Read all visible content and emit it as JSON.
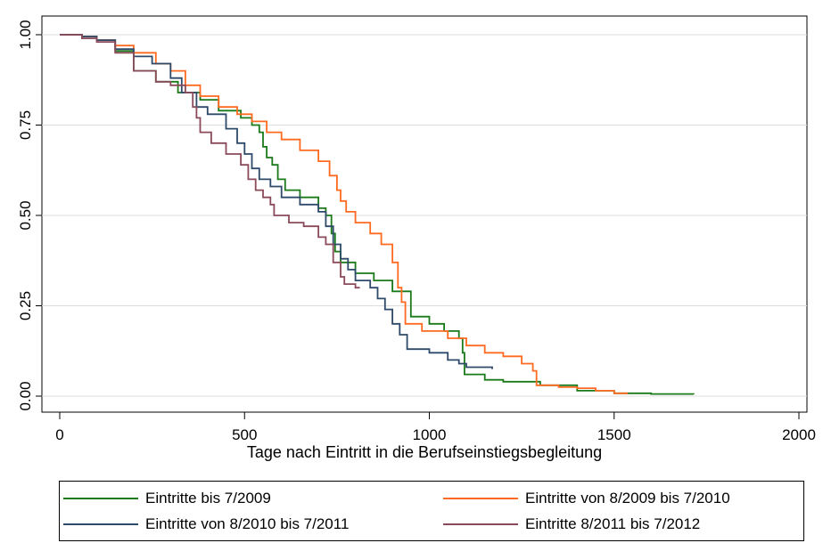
{
  "chart_data": {
    "type": "line",
    "title": "",
    "xlabel": "Tage nach Eintritt in die Berufseinstiegsbegleitung",
    "ylabel": "",
    "xlim": [
      0,
      2000
    ],
    "ylim": [
      0,
      1
    ],
    "xticks": [
      0,
      500,
      1000,
      1500,
      2000
    ],
    "xtick_labels": [
      "0",
      "500",
      "1000",
      "1500",
      "2000"
    ],
    "yticks": [
      0,
      0.25,
      0.5,
      0.75,
      1
    ],
    "ytick_labels": [
      "0.00",
      "0.25",
      "0.50",
      "0.75",
      "1.00"
    ],
    "grid": "horizontal",
    "legend_position": "bottom",
    "series": [
      {
        "name": "Eintritte bis 7/2009",
        "color": "#1a7a1a",
        "points": [
          [
            0,
            1.0
          ],
          [
            60,
            0.995
          ],
          [
            100,
            0.985
          ],
          [
            150,
            0.955
          ],
          [
            200,
            0.9
          ],
          [
            260,
            0.87
          ],
          [
            320,
            0.84
          ],
          [
            380,
            0.82
          ],
          [
            430,
            0.79
          ],
          [
            490,
            0.77
          ],
          [
            520,
            0.75
          ],
          [
            540,
            0.73
          ],
          [
            550,
            0.69
          ],
          [
            560,
            0.66
          ],
          [
            575,
            0.64
          ],
          [
            590,
            0.6
          ],
          [
            610,
            0.57
          ],
          [
            650,
            0.55
          ],
          [
            700,
            0.52
          ],
          [
            720,
            0.5
          ],
          [
            735,
            0.45
          ],
          [
            745,
            0.4
          ],
          [
            760,
            0.37
          ],
          [
            800,
            0.34
          ],
          [
            850,
            0.32
          ],
          [
            900,
            0.29
          ],
          [
            950,
            0.22
          ],
          [
            1000,
            0.2
          ],
          [
            1040,
            0.18
          ],
          [
            1080,
            0.16
          ],
          [
            1090,
            0.12
          ],
          [
            1095,
            0.06
          ],
          [
            1150,
            0.045
          ],
          [
            1200,
            0.04
          ],
          [
            1300,
            0.03
          ],
          [
            1400,
            0.015
          ],
          [
            1500,
            0.008
          ],
          [
            1600,
            0.006
          ],
          [
            1715,
            0.005
          ]
        ]
      },
      {
        "name": "Eintritte von 8/2009 bis 7/2010",
        "color": "#ff6a20",
        "points": [
          [
            0,
            1.0
          ],
          [
            60,
            0.995
          ],
          [
            100,
            0.985
          ],
          [
            150,
            0.97
          ],
          [
            200,
            0.95
          ],
          [
            260,
            0.92
          ],
          [
            300,
            0.9
          ],
          [
            340,
            0.86
          ],
          [
            380,
            0.83
          ],
          [
            430,
            0.8
          ],
          [
            480,
            0.78
          ],
          [
            520,
            0.76
          ],
          [
            560,
            0.73
          ],
          [
            600,
            0.71
          ],
          [
            650,
            0.68
          ],
          [
            700,
            0.65
          ],
          [
            730,
            0.61
          ],
          [
            750,
            0.57
          ],
          [
            760,
            0.54
          ],
          [
            775,
            0.51
          ],
          [
            800,
            0.48
          ],
          [
            840,
            0.45
          ],
          [
            870,
            0.42
          ],
          [
            900,
            0.37
          ],
          [
            915,
            0.3
          ],
          [
            925,
            0.26
          ],
          [
            935,
            0.2
          ],
          [
            980,
            0.18
          ],
          [
            1050,
            0.16
          ],
          [
            1100,
            0.14
          ],
          [
            1150,
            0.12
          ],
          [
            1200,
            0.11
          ],
          [
            1250,
            0.09
          ],
          [
            1280,
            0.07
          ],
          [
            1290,
            0.03
          ],
          [
            1350,
            0.025
          ],
          [
            1400,
            0.022
          ],
          [
            1450,
            0.015
          ],
          [
            1500,
            0.008
          ],
          [
            1535,
            0.005
          ]
        ]
      },
      {
        "name": "Eintritte von 8/2010 bis 7/2011",
        "color": "#2e4a6a",
        "points": [
          [
            0,
            1.0
          ],
          [
            60,
            0.995
          ],
          [
            100,
            0.985
          ],
          [
            150,
            0.96
          ],
          [
            200,
            0.94
          ],
          [
            250,
            0.92
          ],
          [
            300,
            0.88
          ],
          [
            330,
            0.84
          ],
          [
            370,
            0.8
          ],
          [
            400,
            0.78
          ],
          [
            450,
            0.74
          ],
          [
            480,
            0.7
          ],
          [
            500,
            0.67
          ],
          [
            520,
            0.63
          ],
          [
            540,
            0.6
          ],
          [
            570,
            0.58
          ],
          [
            600,
            0.55
          ],
          [
            650,
            0.53
          ],
          [
            700,
            0.51
          ],
          [
            720,
            0.47
          ],
          [
            740,
            0.42
          ],
          [
            760,
            0.38
          ],
          [
            780,
            0.35
          ],
          [
            800,
            0.32
          ],
          [
            840,
            0.3
          ],
          [
            860,
            0.27
          ],
          [
            880,
            0.24
          ],
          [
            900,
            0.2
          ],
          [
            920,
            0.17
          ],
          [
            940,
            0.13
          ],
          [
            1000,
            0.12
          ],
          [
            1050,
            0.1
          ],
          [
            1080,
            0.09
          ],
          [
            1100,
            0.08
          ],
          [
            1170,
            0.075
          ]
        ]
      },
      {
        "name": "Eintritte 8/2011 bis 7/2012",
        "color": "#8a4a5a",
        "points": [
          [
            0,
            1.0
          ],
          [
            60,
            0.99
          ],
          [
            100,
            0.98
          ],
          [
            150,
            0.95
          ],
          [
            200,
            0.9
          ],
          [
            260,
            0.87
          ],
          [
            300,
            0.86
          ],
          [
            340,
            0.84
          ],
          [
            360,
            0.8
          ],
          [
            370,
            0.77
          ],
          [
            380,
            0.73
          ],
          [
            410,
            0.7
          ],
          [
            450,
            0.67
          ],
          [
            490,
            0.64
          ],
          [
            510,
            0.6
          ],
          [
            530,
            0.57
          ],
          [
            550,
            0.55
          ],
          [
            570,
            0.53
          ],
          [
            580,
            0.5
          ],
          [
            620,
            0.48
          ],
          [
            660,
            0.47
          ],
          [
            700,
            0.44
          ],
          [
            720,
            0.42
          ],
          [
            740,
            0.37
          ],
          [
            760,
            0.33
          ],
          [
            770,
            0.31
          ],
          [
            800,
            0.3
          ],
          [
            810,
            0.298
          ]
        ]
      }
    ]
  }
}
